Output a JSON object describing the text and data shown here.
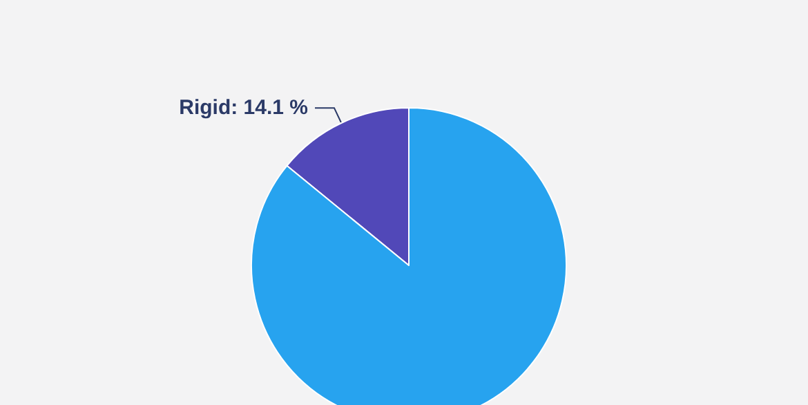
{
  "chart_data": {
    "type": "pie",
    "categories": [
      null,
      null
    ],
    "values": [
      14.1,
      85.9
    ],
    "colors": [
      "#5148b8",
      "#27a3ef"
    ],
    "value_labels": [
      "Rigid: 14.1 %",
      null
    ]
  }
}
